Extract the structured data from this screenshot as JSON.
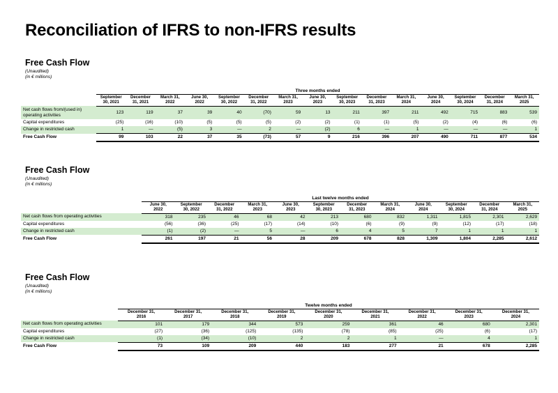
{
  "page": {
    "title": "Reconciliation of IFRS to non-IFRS results"
  },
  "sections": [
    {
      "title": "Free Cash Flow",
      "notes": [
        "(Unaudited)",
        "(in € millions)"
      ],
      "group_header": "Three months ended",
      "columns": [
        [
          "September",
          "30, 2021"
        ],
        [
          "December",
          "31, 2021"
        ],
        [
          "March 31,",
          "2022"
        ],
        [
          "June 30,",
          "2022"
        ],
        [
          "September",
          "30, 2022"
        ],
        [
          "December",
          "31, 2022"
        ],
        [
          "March 31,",
          "2023"
        ],
        [
          "June 30,",
          "2023"
        ],
        [
          "September",
          "30, 2023"
        ],
        [
          "December",
          "31, 2023"
        ],
        [
          "March 31,",
          "2024"
        ],
        [
          "June 30,",
          "2024"
        ],
        [
          "September",
          "30, 2024"
        ],
        [
          "December",
          "31, 2024"
        ],
        [
          "March 31,",
          "2025"
        ]
      ],
      "rows": [
        {
          "label": "Net cash flows from/(used in) operating activities",
          "values": [
            "123",
            "119",
            "37",
            "39",
            "40",
            "(70)",
            "59",
            "13",
            "211",
            "397",
            "211",
            "492",
            "715",
            "883",
            "539"
          ]
        },
        {
          "label": "Capital expenditures",
          "values": [
            "(25)",
            "(16)",
            "(10)",
            "(5)",
            "(5)",
            "(5)",
            "(2)",
            "(2)",
            "(1)",
            "(1)",
            "(5)",
            "(2)",
            "(4)",
            "(6)",
            "(6)"
          ]
        },
        {
          "label": "Change in restricted cash",
          "values": [
            "1",
            "—",
            "(5)",
            "3",
            "—",
            "2",
            "—",
            "(2)",
            "6",
            "—",
            "1",
            "—",
            "—",
            "—",
            "1"
          ]
        },
        {
          "label": "Free Cash Flow",
          "values": [
            "99",
            "103",
            "22",
            "37",
            "35",
            "(73)",
            "57",
            "9",
            "216",
            "396",
            "207",
            "490",
            "711",
            "877",
            "534"
          ]
        }
      ]
    },
    {
      "title": "Free Cash Flow",
      "notes": [
        "(Unaudited)",
        "(in € millions)"
      ],
      "group_header": "Last twelve months ended",
      "columns": [
        [
          "June 30,",
          "2022"
        ],
        [
          "September",
          "30, 2022"
        ],
        [
          "December",
          "31, 2022"
        ],
        [
          "March 31,",
          "2023"
        ],
        [
          "June 30,",
          "2023"
        ],
        [
          "September",
          "30, 2023"
        ],
        [
          "December",
          "31, 2023"
        ],
        [
          "March 31,",
          "2024"
        ],
        [
          "June 30,",
          "2024"
        ],
        [
          "September",
          "30, 2024"
        ],
        [
          "December",
          "31, 2024"
        ],
        [
          "March 31,",
          "2025"
        ]
      ],
      "rows": [
        {
          "label": "Net cash flows from operating activities",
          "values": [
            "318",
            "235",
            "46",
            "68",
            "42",
            "213",
            "680",
            "832",
            "1,311",
            "1,815",
            "2,301",
            "2,629"
          ]
        },
        {
          "label": "Capital expenditures",
          "values": [
            "(56)",
            "(36)",
            "(25)",
            "(17)",
            "(14)",
            "(10)",
            "(6)",
            "(9)",
            "(9)",
            "(12)",
            "(17)",
            "(18)"
          ]
        },
        {
          "label": "Change in restricted cash",
          "values": [
            "(1)",
            "(2)",
            "—",
            "5",
            "—",
            "6",
            "4",
            "5",
            "7",
            "1",
            "1",
            "1"
          ]
        },
        {
          "label": "Free Cash Flow",
          "values": [
            "261",
            "197",
            "21",
            "56",
            "28",
            "209",
            "678",
            "828",
            "1,309",
            "1,804",
            "2,285",
            "2,612"
          ]
        }
      ]
    },
    {
      "title": "Free Cash Flow",
      "notes": [
        "(Unaudited)",
        "(in € millions)"
      ],
      "group_header": "Twelve months ended",
      "columns": [
        [
          "December 31,",
          "2016"
        ],
        [
          "December 31,",
          "2017"
        ],
        [
          "December 31,",
          "2018"
        ],
        [
          "December 31,",
          "2019"
        ],
        [
          "December 31,",
          "2020"
        ],
        [
          "December 31,",
          "2021"
        ],
        [
          "December 31,",
          "2022"
        ],
        [
          "December 31,",
          "2023"
        ],
        [
          "December 31,",
          "2024"
        ]
      ],
      "rows": [
        {
          "label": "Net cash flows from operating activities",
          "values": [
            "101",
            "179",
            "344",
            "573",
            "259",
            "361",
            "46",
            "680",
            "2,301"
          ]
        },
        {
          "label": "Capital expenditures",
          "values": [
            "(27)",
            "(36)",
            "(125)",
            "(135)",
            "(78)",
            "(85)",
            "(25)",
            "(6)",
            "(17)"
          ]
        },
        {
          "label": "Change in restricted cash",
          "values": [
            "(1)",
            "(34)",
            "(10)",
            "2",
            "2",
            "1",
            "—",
            "4",
            "1"
          ]
        },
        {
          "label": "Free Cash Flow",
          "values": [
            "73",
            "109",
            "209",
            "440",
            "183",
            "277",
            "21",
            "678",
            "2,285"
          ]
        }
      ]
    }
  ]
}
